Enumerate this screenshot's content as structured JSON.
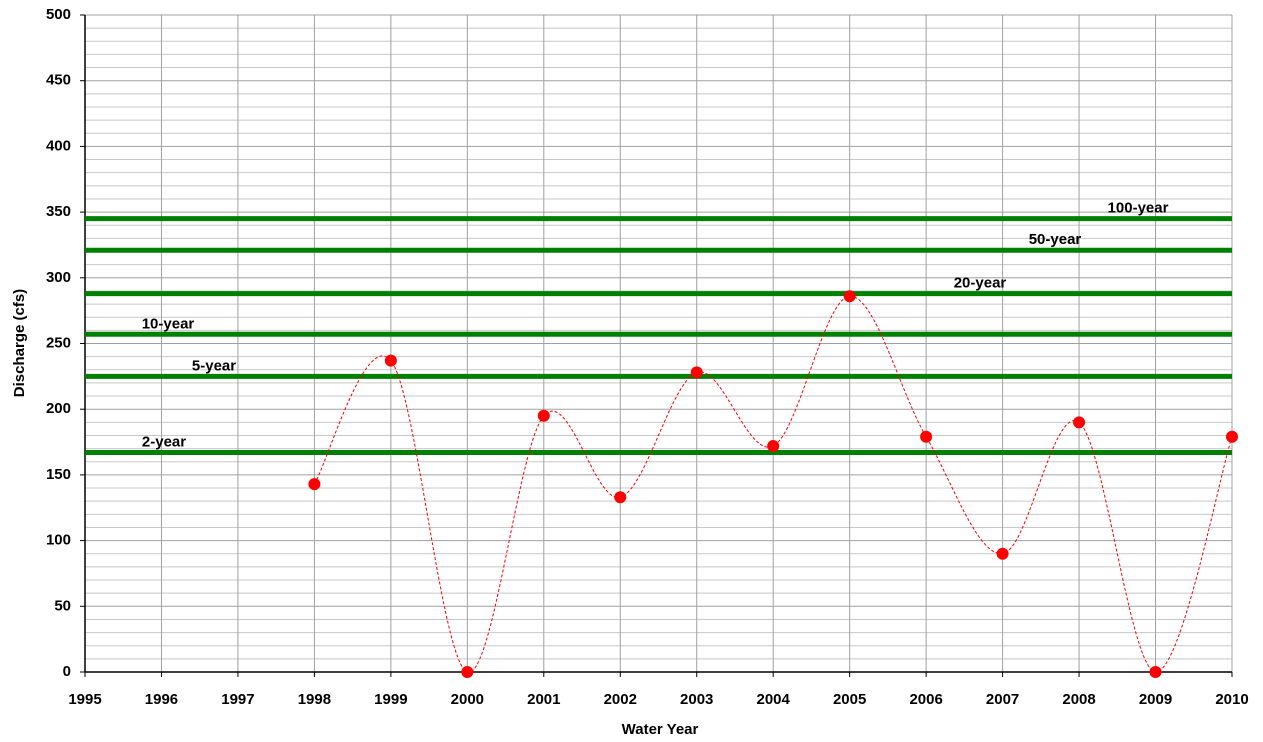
{
  "chart_data": {
    "type": "line",
    "smooth": true,
    "x_label": "Water Year",
    "y_label": "Discharge (cfs)",
    "x": [
      1998,
      1999,
      2000,
      2001,
      2002,
      2003,
      2004,
      2005,
      2006,
      2007,
      2008,
      2009,
      2010
    ],
    "series": [
      {
        "color": "#ff0000",
        "values": [
          143,
          237,
          0,
          195,
          133,
          228,
          172,
          286,
          179,
          90,
          190,
          0,
          179
        ]
      }
    ],
    "xlim": [
      1995,
      2010
    ],
    "xticks": [
      1995,
      1996,
      1997,
      1998,
      1999,
      2000,
      2001,
      2002,
      2003,
      2004,
      2005,
      2006,
      2007,
      2008,
      2009,
      2010
    ],
    "ylim": [
      0,
      500
    ],
    "yticks": [
      0,
      50,
      100,
      150,
      200,
      250,
      300,
      350,
      400,
      450,
      500
    ],
    "grid": true,
    "reference_lines": [
      {
        "label": "100-year",
        "value": 345,
        "color": "#008000"
      },
      {
        "label": "50-year",
        "value": 321,
        "color": "#008000"
      },
      {
        "label": "20-year",
        "value": 288,
        "color": "#008000"
      },
      {
        "label": "10-year",
        "value": 257,
        "color": "#008000"
      },
      {
        "label": "5-year",
        "value": 225,
        "color": "#008000"
      },
      {
        "label": "2-year",
        "value": 167,
        "color": "#008000"
      }
    ]
  }
}
